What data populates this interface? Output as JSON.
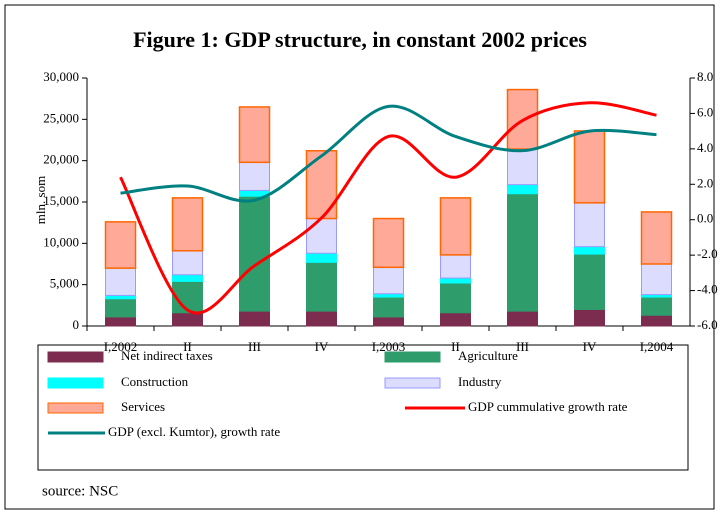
{
  "chart_data": {
    "type": "bar",
    "stacked": true,
    "title": "Figure 1: GDP structure, in constant 2002 prices",
    "y_label": "mln. som",
    "source": "source: NSC",
    "categories": [
      "I,2002",
      "II",
      "III",
      "IV",
      "I,2003",
      "II",
      "III",
      "IV",
      "I,2004"
    ],
    "ylim": [
      0,
      30000
    ],
    "yticks": [
      {
        "value": 0,
        "label": "0"
      },
      {
        "value": 5000,
        "label": "5,000"
      },
      {
        "value": 10000,
        "label": "10,000"
      },
      {
        "value": 15000,
        "label": "15,000"
      },
      {
        "value": 20000,
        "label": "20,000"
      },
      {
        "value": 25000,
        "label": "25,000"
      },
      {
        "value": 30000,
        "label": "30,000"
      }
    ],
    "y2lim": [
      -6,
      8
    ],
    "y2ticks": [
      {
        "value": -6,
        "label": "-6.0"
      },
      {
        "value": -4,
        "label": "-4.0"
      },
      {
        "value": -2,
        "label": "-2.0"
      },
      {
        "value": 0,
        "label": "0.0"
      },
      {
        "value": 2,
        "label": "2.0"
      },
      {
        "value": 4,
        "label": "4.0"
      },
      {
        "value": 6,
        "label": "6.0"
      },
      {
        "value": 8,
        "label": "8.0"
      }
    ],
    "series": [
      {
        "name": "Net indirect taxes",
        "color": "#7b2c4f",
        "values": [
          1100,
          1600,
          1800,
          1800,
          1100,
          1600,
          1800,
          2000,
          1300
        ]
      },
      {
        "name": "Agriculture",
        "color": "#2e9d6b",
        "values": [
          2200,
          3800,
          13900,
          5900,
          2400,
          3600,
          14200,
          6700,
          2200
        ]
      },
      {
        "name": "Construction",
        "color": "#00ffff",
        "values": [
          400,
          800,
          700,
          1100,
          400,
          600,
          1100,
          900,
          300
        ]
      },
      {
        "name": "Industry",
        "color": "#dcdcff",
        "values": [
          3300,
          2900,
          3400,
          4200,
          3200,
          2800,
          4300,
          5300,
          3700
        ]
      },
      {
        "name": "Services",
        "color": "#ffaa99",
        "values": [
          5600,
          6400,
          6700,
          8200,
          5900,
          6900,
          7200,
          8700,
          6300
        ]
      },
      {
        "name": "GDP cummulative growth rate",
        "color": "#ff0000",
        "type": "line",
        "axis": "y2",
        "values": [
          2.4,
          -5.1,
          -2.6,
          0.1,
          4.7,
          2.4,
          5.6,
          6.6,
          5.9
        ]
      },
      {
        "name": "GDP (excl. Kumtor), growth rate",
        "color": "#008080",
        "type": "line",
        "axis": "y2",
        "values": [
          1.5,
          1.9,
          1.1,
          3.6,
          6.4,
          4.7,
          3.9,
          5.0,
          4.8
        ]
      }
    ]
  }
}
